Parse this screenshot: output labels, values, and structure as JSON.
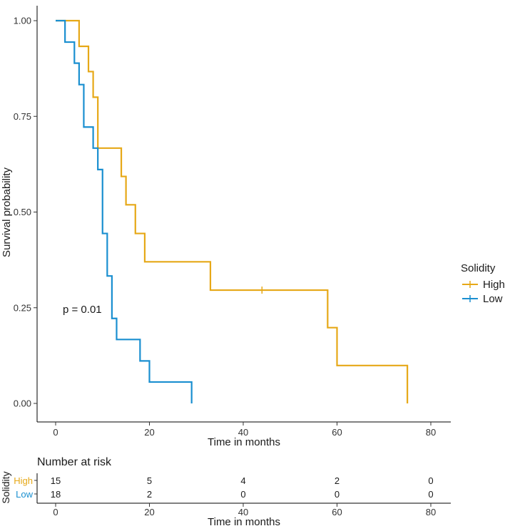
{
  "chart_data": {
    "type": "line",
    "subtype": "kaplan-meier",
    "xlabel": "Time in months",
    "ylabel": "Survival probability",
    "xlim": [
      -4,
      84
    ],
    "ylim": [
      -0.05,
      1.05
    ],
    "x_ticks": [
      0,
      20,
      40,
      60,
      80
    ],
    "y_ticks": [
      0.0,
      0.25,
      0.5,
      0.75,
      1.0
    ],
    "y_tick_labels": [
      "0.00",
      "0.25",
      "0.50",
      "0.75",
      "1.00"
    ],
    "annotation": "p = 0.01",
    "legend": {
      "title": "Solidity",
      "position": "right"
    },
    "series": [
      {
        "name": "High",
        "color": "#E6A817",
        "times": [
          0,
          5,
          7,
          8,
          9,
          14,
          15,
          17,
          19,
          33,
          58,
          60,
          75
        ],
        "survival": [
          1.0,
          0.933,
          0.867,
          0.8,
          0.667,
          0.593,
          0.519,
          0.444,
          0.37,
          0.296,
          0.198,
          0.099,
          0.0
        ],
        "censored": [
          44
        ]
      },
      {
        "name": "Low",
        "color": "#1A8FD0",
        "times": [
          0,
          2,
          4,
          5,
          6,
          8,
          9,
          10,
          11,
          12,
          13,
          18,
          20,
          29
        ],
        "survival": [
          1.0,
          0.944,
          0.889,
          0.833,
          0.722,
          0.667,
          0.611,
          0.444,
          0.333,
          0.222,
          0.167,
          0.111,
          0.056,
          0.0
        ],
        "censored": []
      }
    ],
    "risk_table": {
      "title": "Number at risk",
      "ylabel": "Solidity",
      "xlabel": "Time in months",
      "times": [
        0,
        20,
        40,
        60,
        80
      ],
      "rows": [
        {
          "label": "High",
          "color": "#E6A817",
          "values": [
            "15",
            "5",
            "4",
            "2",
            "0"
          ]
        },
        {
          "label": "Low",
          "color": "#1A8FD0",
          "values": [
            "18",
            "2",
            "0",
            "0",
            "0"
          ]
        }
      ]
    }
  }
}
